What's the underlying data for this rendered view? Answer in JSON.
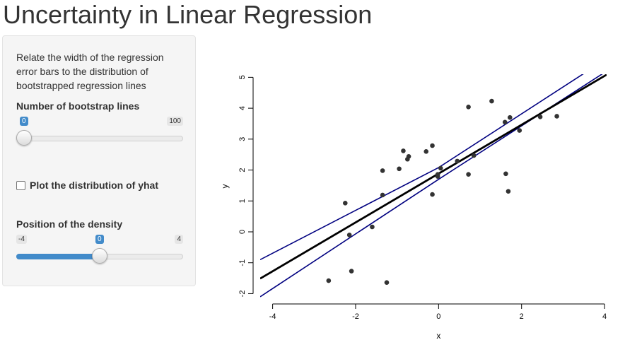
{
  "page": {
    "title": "Uncertainty in Linear Regression"
  },
  "sidebar": {
    "description": "Relate the width of the regression error bars to the distribution of bootstrapped regression lines",
    "bootstrap_slider": {
      "label": "Number of bootstrap lines",
      "min": 0,
      "max": 100,
      "value": 0,
      "min_label": "0",
      "max_label": "100",
      "value_label": "0"
    },
    "checkbox": {
      "label": "Plot the distribution of yhat",
      "checked": false
    },
    "density_slider": {
      "label": "Position of the density",
      "min": -4,
      "max": 4,
      "value": 0,
      "min_label": "-4",
      "max_label": "4",
      "value_label": "0"
    },
    "colors": {
      "accent": "#428bca"
    }
  },
  "chart_data": {
    "type": "scatter",
    "xlabel": "x",
    "ylabel": "y",
    "xlim": [
      -4.3,
      4.05
    ],
    "ylim": [
      -2.15,
      5.1
    ],
    "xticks": [
      -4,
      -2,
      0,
      2,
      4
    ],
    "yticks": [
      -2,
      -1,
      0,
      1,
      2,
      3,
      4,
      5
    ],
    "grid": false,
    "points": [
      [
        -2.65,
        -1.58
      ],
      [
        -2.25,
        0.93
      ],
      [
        -2.15,
        -0.1
      ],
      [
        -2.1,
        -1.27
      ],
      [
        -1.6,
        0.16
      ],
      [
        -1.35,
        1.19
      ],
      [
        -1.35,
        1.98
      ],
      [
        -1.25,
        -1.64
      ],
      [
        -0.95,
        2.04
      ],
      [
        -0.85,
        2.62
      ],
      [
        -0.75,
        2.35
      ],
      [
        -0.72,
        2.44
      ],
      [
        -0.3,
        2.6
      ],
      [
        -0.15,
        2.79
      ],
      [
        -0.15,
        1.21
      ],
      [
        -0.02,
        1.79
      ],
      [
        -0.02,
        1.86
      ],
      [
        0.05,
        2.06
      ],
      [
        0.45,
        2.29
      ],
      [
        0.72,
        4.04
      ],
      [
        0.72,
        1.86
      ],
      [
        0.85,
        2.47
      ],
      [
        1.28,
        4.23
      ],
      [
        1.6,
        3.55
      ],
      [
        1.62,
        1.88
      ],
      [
        1.68,
        1.31
      ],
      [
        1.72,
        3.7
      ],
      [
        1.95,
        3.28
      ],
      [
        2.45,
        3.72
      ],
      [
        2.85,
        3.74
      ]
    ],
    "fit_line": {
      "intercept": 1.885,
      "slope": 0.79,
      "color": "#000000"
    },
    "ci_upper": [
      [
        -4.3,
        -0.9
      ],
      [
        0,
        2.08
      ],
      [
        4.05,
        5.6
      ]
    ],
    "ci_lower": [
      [
        -4.3,
        -2.1
      ],
      [
        0,
        1.7
      ],
      [
        4.05,
        5.2
      ]
    ],
    "ci_color": "#000080",
    "point_color": "#333333"
  }
}
